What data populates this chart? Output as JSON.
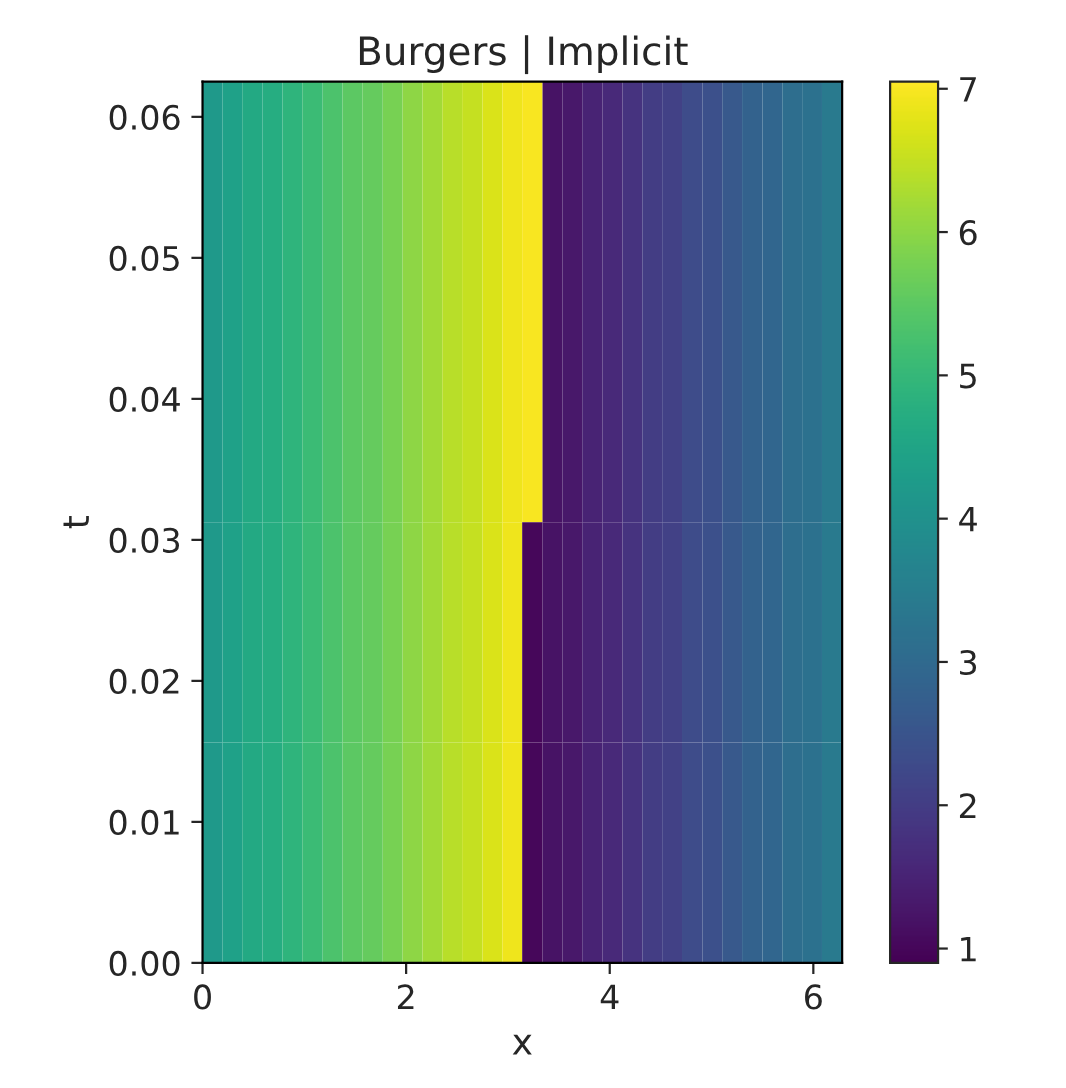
{
  "chart_data": {
    "type": "heatmap",
    "title": "Burgers | Implicit",
    "xlabel": "x",
    "ylabel": "t",
    "x": [
      0.1,
      0.29,
      0.49,
      0.69,
      0.88,
      1.08,
      1.28,
      1.47,
      1.67,
      1.87,
      2.06,
      2.26,
      2.45,
      2.65,
      2.85,
      3.04,
      3.24,
      3.44,
      3.63,
      3.83,
      4.03,
      4.22,
      4.42,
      4.61,
      4.81,
      5.01,
      5.2,
      5.4,
      5.6,
      5.79,
      5.99,
      6.18
    ],
    "cells": [
      [
        4.2,
        4.4,
        4.6,
        4.7,
        4.9,
        5.1,
        5.3,
        5.5,
        5.6,
        5.8,
        6.0,
        6.2,
        6.4,
        6.5,
        6.7,
        6.9,
        7.0,
        1.2,
        1.3,
        1.5,
        1.6,
        1.8,
        2.0,
        2.1,
        2.3,
        2.4,
        2.6,
        2.8,
        2.9,
        3.1,
        3.2,
        3.4
      ],
      [
        4.2,
        4.4,
        4.6,
        4.7,
        4.9,
        5.1,
        5.3,
        5.5,
        5.6,
        5.8,
        6.0,
        6.2,
        6.4,
        6.5,
        6.7,
        6.9,
        7.0,
        1.2,
        1.3,
        1.5,
        1.6,
        1.8,
        2.0,
        2.1,
        2.3,
        2.4,
        2.6,
        2.8,
        2.9,
        3.1,
        3.2,
        3.4
      ],
      [
        4.2,
        4.4,
        4.6,
        4.7,
        4.9,
        5.1,
        5.3,
        5.5,
        5.6,
        5.8,
        6.0,
        6.2,
        6.4,
        6.5,
        6.7,
        6.9,
        1.0,
        1.2,
        1.3,
        1.5,
        1.6,
        1.8,
        2.0,
        2.1,
        2.3,
        2.4,
        2.6,
        2.8,
        2.9,
        3.1,
        3.2,
        3.4
      ],
      [
        4.2,
        4.4,
        4.6,
        4.7,
        4.9,
        5.1,
        5.3,
        5.5,
        5.6,
        5.8,
        6.0,
        6.2,
        6.4,
        6.5,
        6.7,
        6.9,
        1.0,
        1.2,
        1.3,
        1.5,
        1.6,
        1.8,
        2.0,
        2.1,
        2.3,
        2.4,
        2.6,
        2.8,
        2.9,
        3.1,
        3.2,
        3.4
      ]
    ],
    "xlim": [
      0,
      6.283
    ],
    "xticks": [
      0,
      2,
      4,
      6
    ],
    "ylim": [
      0,
      0.0625
    ],
    "yticks": [
      {
        "value": 0,
        "label": "0.00"
      },
      {
        "value": 0.01,
        "label": "0.01"
      },
      {
        "value": 0.02,
        "label": "0.02"
      },
      {
        "value": 0.03,
        "label": "0.03"
      },
      {
        "value": 0.04,
        "label": "0.04"
      },
      {
        "value": 0.05,
        "label": "0.05"
      },
      {
        "value": 0.06,
        "label": "0.06"
      }
    ],
    "clim": [
      0.9,
      7.05
    ],
    "cticks": [
      1,
      2,
      3,
      4,
      5,
      6,
      7
    ]
  }
}
